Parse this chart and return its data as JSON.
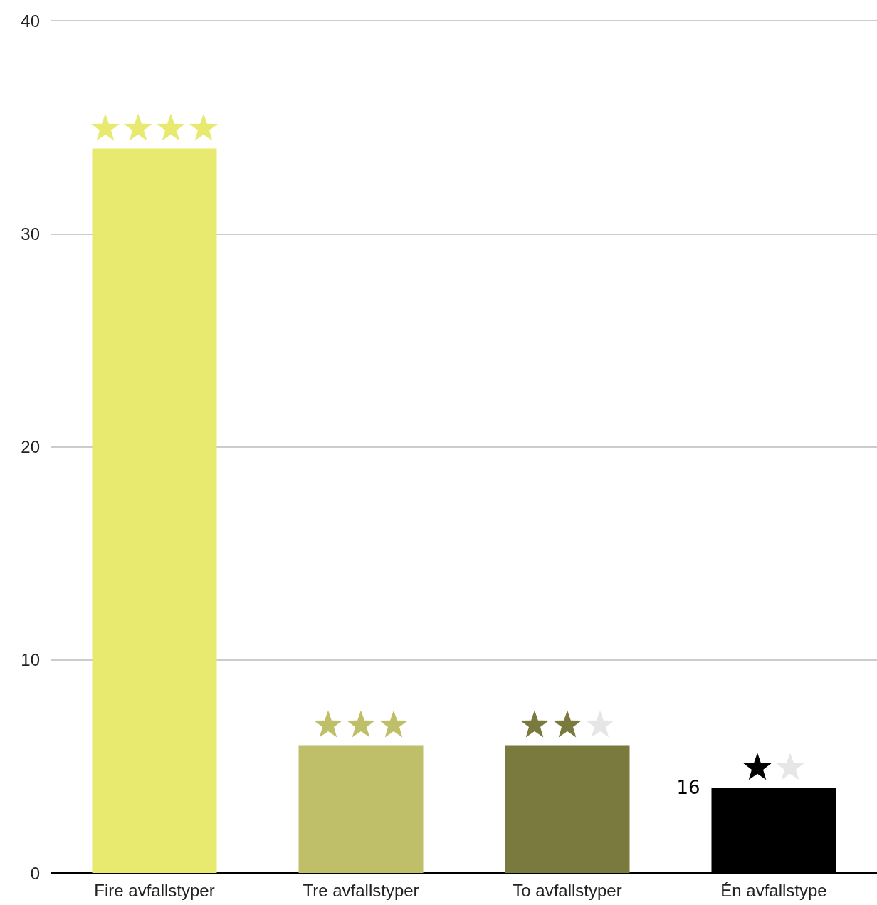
{
  "chart_data": {
    "type": "bar",
    "categories": [
      "Fire avfallstyper",
      "Tre avfallstyper",
      "To avfallstyper",
      "Én avfallstype"
    ],
    "values": [
      34,
      6,
      6,
      4
    ],
    "colors": [
      "#e8ea6f",
      "#bfbf6a",
      "#7a7a3e",
      "#000000"
    ],
    "ylim": [
      0,
      40
    ],
    "yticks": [
      0,
      10,
      20,
      30,
      40
    ],
    "grid": "y",
    "annotations": [
      "16"
    ]
  }
}
